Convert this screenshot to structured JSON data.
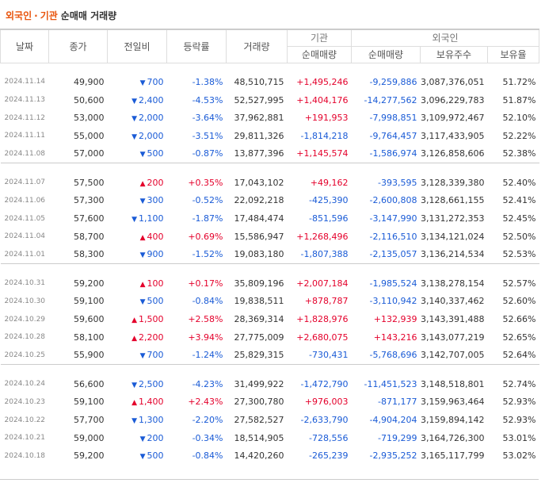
{
  "title": {
    "part1": "외국인",
    "sep": "·",
    "part2": "기관",
    "part3": "순매매 거래량"
  },
  "headers": {
    "date": "날짜",
    "close": "종가",
    "change": "전일비",
    "rate": "등락률",
    "volume": "거래량",
    "inst_group": "기관",
    "foreign_group": "외국인",
    "inst_net": "순매매량",
    "foreign_net": "순매매량",
    "foreign_hold": "보유주수",
    "foreign_ratio": "보유율"
  },
  "groups": [
    [
      {
        "date": "2024.11.14",
        "close": "49,900",
        "dir": "down",
        "change": "700",
        "rate": "-1.38%",
        "volume": "48,510,715",
        "inst": "+1,495,246",
        "foreign": "-9,259,886",
        "hold": "3,087,376,051",
        "ratio": "51.72%"
      },
      {
        "date": "2024.11.13",
        "close": "50,600",
        "dir": "down",
        "change": "2,400",
        "rate": "-4.53%",
        "volume": "52,527,995",
        "inst": "+1,404,176",
        "foreign": "-14,277,562",
        "hold": "3,096,229,783",
        "ratio": "51.87%"
      },
      {
        "date": "2024.11.12",
        "close": "53,000",
        "dir": "down",
        "change": "2,000",
        "rate": "-3.64%",
        "volume": "37,962,881",
        "inst": "+191,953",
        "foreign": "-7,998,851",
        "hold": "3,109,972,467",
        "ratio": "52.10%"
      },
      {
        "date": "2024.11.11",
        "close": "55,000",
        "dir": "down",
        "change": "2,000",
        "rate": "-3.51%",
        "volume": "29,811,326",
        "inst": "-1,814,218",
        "foreign": "-9,764,457",
        "hold": "3,117,433,905",
        "ratio": "52.22%"
      },
      {
        "date": "2024.11.08",
        "close": "57,000",
        "dir": "down",
        "change": "500",
        "rate": "-0.87%",
        "volume": "13,877,396",
        "inst": "+1,145,574",
        "foreign": "-1,586,974",
        "hold": "3,126,858,606",
        "ratio": "52.38%"
      }
    ],
    [
      {
        "date": "2024.11.07",
        "close": "57,500",
        "dir": "up",
        "change": "200",
        "rate": "+0.35%",
        "volume": "17,043,102",
        "inst": "+49,162",
        "foreign": "-393,595",
        "hold": "3,128,339,380",
        "ratio": "52.40%"
      },
      {
        "date": "2024.11.06",
        "close": "57,300",
        "dir": "down",
        "change": "300",
        "rate": "-0.52%",
        "volume": "22,092,218",
        "inst": "-425,390",
        "foreign": "-2,600,808",
        "hold": "3,128,661,155",
        "ratio": "52.41%"
      },
      {
        "date": "2024.11.05",
        "close": "57,600",
        "dir": "down",
        "change": "1,100",
        "rate": "-1.87%",
        "volume": "17,484,474",
        "inst": "-851,596",
        "foreign": "-3,147,990",
        "hold": "3,131,272,353",
        "ratio": "52.45%"
      },
      {
        "date": "2024.11.04",
        "close": "58,700",
        "dir": "up",
        "change": "400",
        "rate": "+0.69%",
        "volume": "15,586,947",
        "inst": "+1,268,496",
        "foreign": "-2,116,510",
        "hold": "3,134,121,024",
        "ratio": "52.50%"
      },
      {
        "date": "2024.11.01",
        "close": "58,300",
        "dir": "down",
        "change": "900",
        "rate": "-1.52%",
        "volume": "19,083,180",
        "inst": "-1,807,388",
        "foreign": "-2,135,057",
        "hold": "3,136,214,534",
        "ratio": "52.53%"
      }
    ],
    [
      {
        "date": "2024.10.31",
        "close": "59,200",
        "dir": "up",
        "change": "100",
        "rate": "+0.17%",
        "volume": "35,809,196",
        "inst": "+2,007,184",
        "foreign": "-1,985,524",
        "hold": "3,138,278,154",
        "ratio": "52.57%"
      },
      {
        "date": "2024.10.30",
        "close": "59,100",
        "dir": "down",
        "change": "500",
        "rate": "-0.84%",
        "volume": "19,838,511",
        "inst": "+878,787",
        "foreign": "-3,110,942",
        "hold": "3,140,337,462",
        "ratio": "52.60%"
      },
      {
        "date": "2024.10.29",
        "close": "59,600",
        "dir": "up",
        "change": "1,500",
        "rate": "+2.58%",
        "volume": "28,369,314",
        "inst": "+1,828,976",
        "foreign": "+132,939",
        "hold": "3,143,391,488",
        "ratio": "52.66%"
      },
      {
        "date": "2024.10.28",
        "close": "58,100",
        "dir": "up",
        "change": "2,200",
        "rate": "+3.94%",
        "volume": "27,775,009",
        "inst": "+2,680,075",
        "foreign": "+143,216",
        "hold": "3,143,077,219",
        "ratio": "52.65%"
      },
      {
        "date": "2024.10.25",
        "close": "55,900",
        "dir": "down",
        "change": "700",
        "rate": "-1.24%",
        "volume": "25,829,315",
        "inst": "-730,431",
        "foreign": "-5,768,696",
        "hold": "3,142,707,005",
        "ratio": "52.64%"
      }
    ],
    [
      {
        "date": "2024.10.24",
        "close": "56,600",
        "dir": "down",
        "change": "2,500",
        "rate": "-4.23%",
        "volume": "31,499,922",
        "inst": "-1,472,790",
        "foreign": "-11,451,523",
        "hold": "3,148,518,801",
        "ratio": "52.74%"
      },
      {
        "date": "2024.10.23",
        "close": "59,100",
        "dir": "up",
        "change": "1,400",
        "rate": "+2.43%",
        "volume": "27,300,780",
        "inst": "+976,003",
        "foreign": "-871,177",
        "hold": "3,159,963,464",
        "ratio": "52.93%"
      },
      {
        "date": "2024.10.22",
        "close": "57,700",
        "dir": "down",
        "change": "1,300",
        "rate": "-2.20%",
        "volume": "27,582,527",
        "inst": "-2,633,790",
        "foreign": "-4,904,204",
        "hold": "3,159,894,142",
        "ratio": "52.93%"
      },
      {
        "date": "2024.10.21",
        "close": "59,000",
        "dir": "down",
        "change": "200",
        "rate": "-0.34%",
        "volume": "18,514,905",
        "inst": "-728,556",
        "foreign": "-719,299",
        "hold": "3,164,726,300",
        "ratio": "53.01%"
      },
      {
        "date": "2024.10.18",
        "close": "59,200",
        "dir": "down",
        "change": "500",
        "rate": "-0.84%",
        "volume": "14,420,260",
        "inst": "-265,239",
        "foreign": "-2,935,252",
        "hold": "3,165,117,799",
        "ratio": "53.02%"
      }
    ]
  ],
  "glyphs": {
    "up": "▲",
    "down": "▼"
  },
  "colors": {
    "up": "#e4002b",
    "down": "#1a5bd6",
    "accent": "#e8540c"
  }
}
